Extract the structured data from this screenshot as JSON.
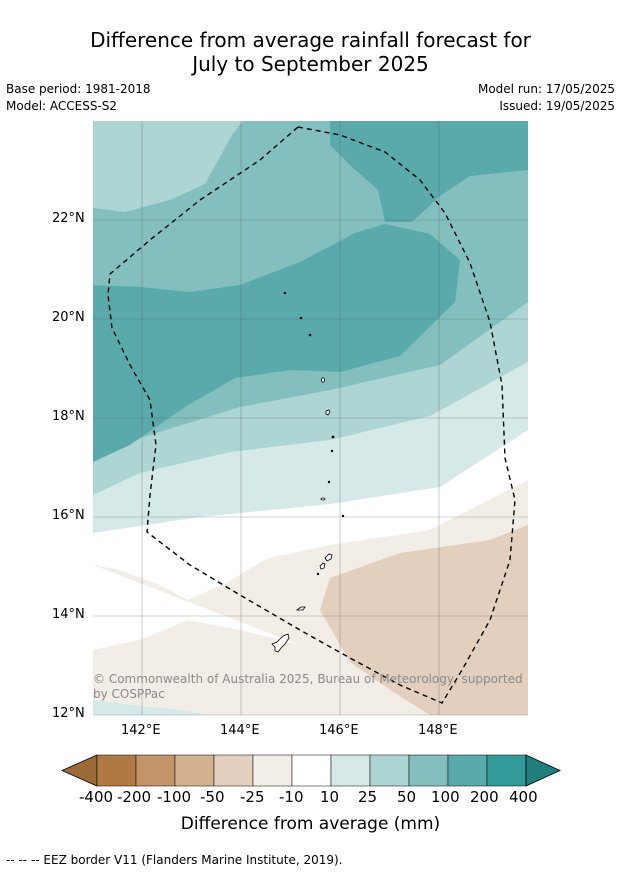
{
  "title": {
    "line1": "Difference from average rainfall forecast for",
    "line2": "July to September 2025"
  },
  "meta": {
    "base_period": "Base period: 1981-2018",
    "model": "Model: ACCESS-S2",
    "model_run": "Model run: 17/05/2025",
    "issued": "Issued: 19/05/2025"
  },
  "map": {
    "lat_labels": [
      "22°N",
      "20°N",
      "18°N",
      "16°N",
      "14°N",
      "12°N"
    ],
    "lon_labels": [
      "142°E",
      "144°E",
      "146°E",
      "148°E"
    ],
    "copyright_line1": "© Commonwealth of Australia 2025, Bureau of Meteorology, supported",
    "copyright_line2": "by COSPPac"
  },
  "colorbar": {
    "labels": [
      "-400",
      "-200",
      "-100",
      "-50",
      "-25",
      "-10",
      "10",
      "25",
      "50",
      "100",
      "200",
      "400"
    ],
    "title": "Difference from average (mm)",
    "colors": [
      "#9c6a38",
      "#b07843",
      "#c39468",
      "#d3b08e",
      "#e3cfbd",
      "#f2ede6",
      "#ffffff",
      "#d5e9e8",
      "#acd5d4",
      "#83bfbe",
      "#5aaaac",
      "#329b99",
      "#217f7e"
    ]
  },
  "footer": "--  --  -- EEZ border V11 (Flanders Marine Institute, 2019)."
}
